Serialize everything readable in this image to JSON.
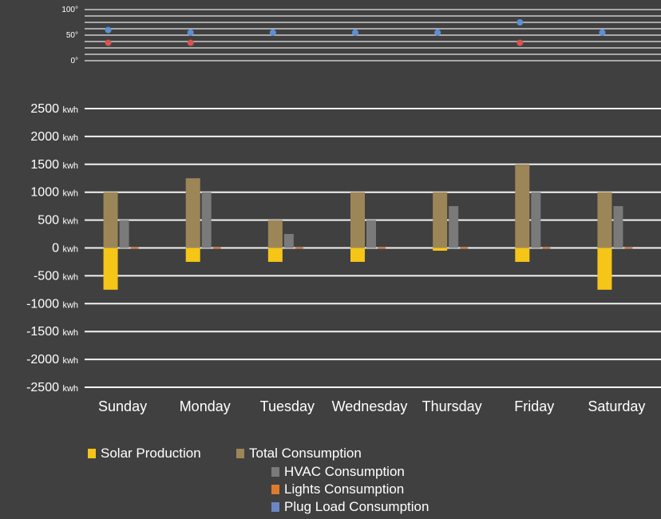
{
  "chart_data": [
    {
      "type": "scatter",
      "y_ticks": [
        "100°",
        "50°",
        "0°"
      ],
      "ylim": [
        0,
        100
      ],
      "grid": true,
      "categories": [
        "Sunday",
        "Monday",
        "Tuesday",
        "Wednesday",
        "Thursday",
        "Friday",
        "Saturday"
      ],
      "series": [
        {
          "color": "#5b8fd6",
          "values": [
            60,
            55,
            55,
            55,
            55,
            75,
            55
          ]
        },
        {
          "color": "#d9534f",
          "values": [
            35,
            35,
            null,
            null,
            null,
            35,
            null
          ]
        }
      ]
    },
    {
      "type": "bar",
      "categories": [
        "Sunday",
        "Monday",
        "Tuesday",
        "Wednesday",
        "Thursday",
        "Friday",
        "Saturday"
      ],
      "unit": "kwh",
      "y_ticks": [
        "2500",
        "2000",
        "1500",
        "1000",
        "500",
        "0",
        "-500",
        "-1000",
        "-1500",
        "-2000",
        "-2500"
      ],
      "ylim": [
        -2500,
        2500
      ],
      "grid": true,
      "legend_position": "bottom",
      "series": [
        {
          "name": "Solar Production",
          "color": "#f5c518",
          "values": [
            -750,
            -250,
            -250,
            -250,
            -50,
            -250,
            -750
          ]
        },
        {
          "name": "Total Consumption",
          "color": "#9c8658",
          "values": [
            1000,
            1250,
            500,
            1000,
            1000,
            1500,
            1000
          ]
        },
        {
          "name": "HVAC Consumption",
          "color": "#7a7a7a",
          "values": [
            500,
            1000,
            250,
            500,
            750,
            1000,
            750
          ]
        },
        {
          "name": "Lights Consumption",
          "color": "#e07a2e",
          "values": [
            10,
            10,
            10,
            10,
            10,
            10,
            10
          ]
        },
        {
          "name": "Plug Load Consumption",
          "color": "#6b86c4",
          "values": [
            0,
            0,
            0,
            0,
            0,
            0,
            0
          ]
        }
      ]
    }
  ]
}
